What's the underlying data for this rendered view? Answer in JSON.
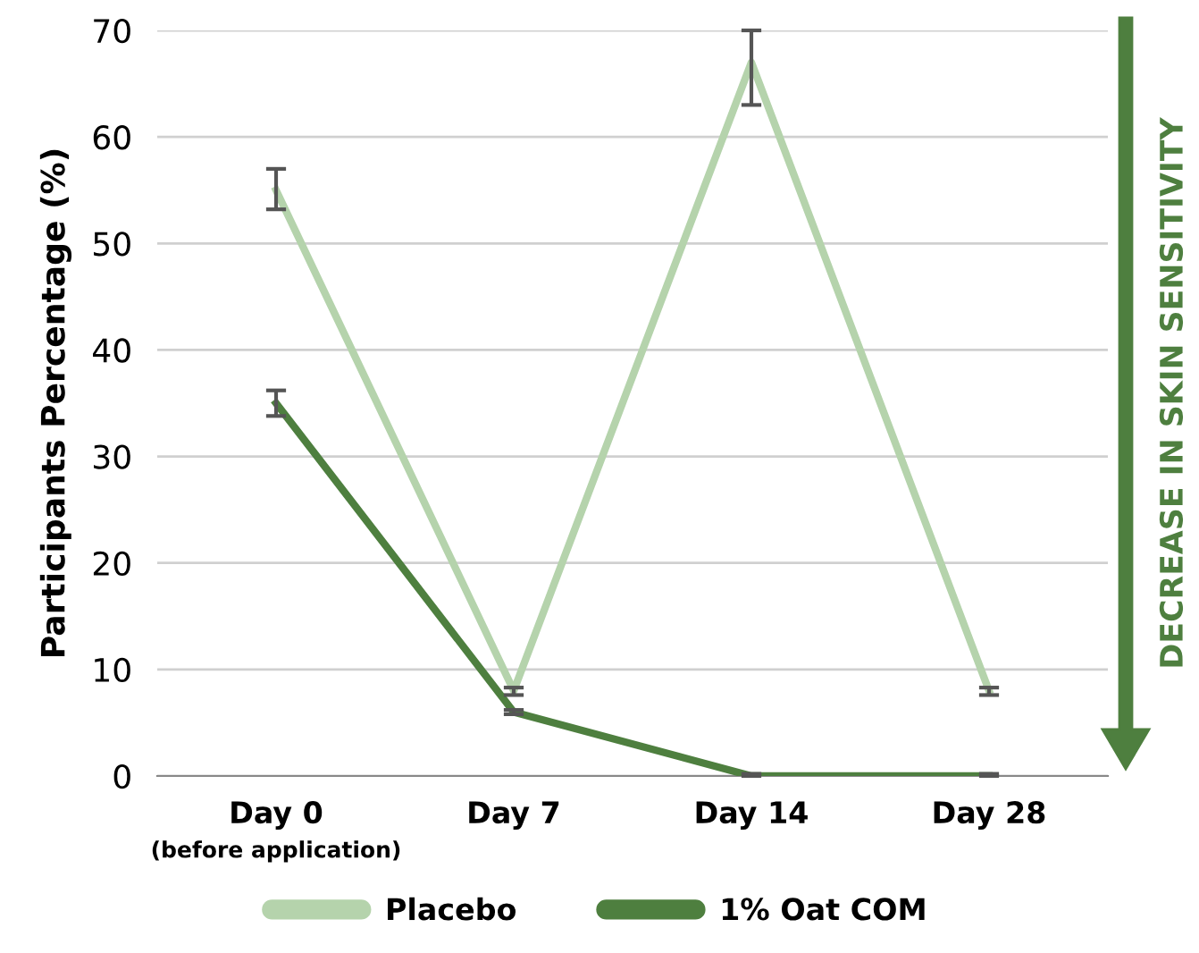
{
  "chart_data": {
    "type": "line",
    "ylabel": "Participants Percentage (%)",
    "categories": [
      "Day 0",
      "Day 7",
      "Day 14",
      "Day 28"
    ],
    "series": [
      {
        "name": "Placebo",
        "color": "#b5d3ac",
        "values": [
          55,
          8,
          67,
          8
        ],
        "errors": [
          [
            53.2,
            57
          ],
          [
            7.6,
            8.3
          ],
          [
            63,
            70
          ],
          [
            7.6,
            8.3
          ]
        ]
      },
      {
        "name": "1% Oat COM",
        "color": "#4e7f3f",
        "values": [
          35,
          6,
          0,
          0
        ],
        "errors": [
          [
            33.8,
            36.2
          ],
          [
            5.8,
            6.2
          ],
          [
            0,
            0.2
          ],
          [
            0,
            0.2
          ]
        ]
      }
    ],
    "ylim": [
      0,
      70
    ],
    "yticks": [
      0,
      10,
      20,
      30,
      40,
      50,
      60,
      70
    ],
    "grid": "y",
    "legend": "bottom",
    "marker": "none",
    "line_style": "solid",
    "annotations": [
      "(before application)",
      "DECREASE IN SKIN SENSITIVITY"
    ]
  }
}
